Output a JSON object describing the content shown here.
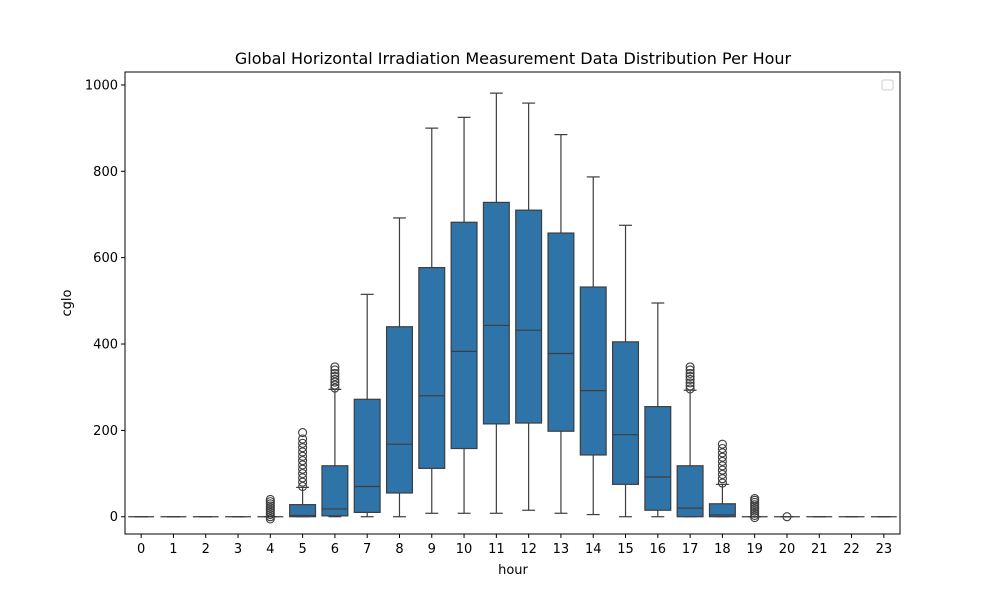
{
  "chart_data": {
    "type": "box",
    "title": "Global Horizontal Irradiation Measurement Data Distribution Per Hour",
    "xlabel": "hour",
    "ylabel": "cglo",
    "ylim": [
      -40,
      1030
    ],
    "yticks": [
      0,
      200,
      400,
      600,
      800,
      1000
    ],
    "grid": false,
    "legend": "top-right (empty)",
    "box_color": "#2f74a8",
    "line_color": "#3d3d3d",
    "categories": [
      "0",
      "1",
      "2",
      "3",
      "4",
      "5",
      "6",
      "7",
      "8",
      "9",
      "10",
      "11",
      "12",
      "13",
      "14",
      "15",
      "16",
      "17",
      "18",
      "19",
      "20",
      "21",
      "22",
      "23"
    ],
    "boxes": [
      {
        "hour": "0",
        "whislo": 0,
        "q1": 0,
        "med": 0,
        "q3": 0,
        "whishi": 0,
        "fliers": []
      },
      {
        "hour": "1",
        "whislo": 0,
        "q1": 0,
        "med": 0,
        "q3": 0,
        "whishi": 0,
        "fliers": []
      },
      {
        "hour": "2",
        "whislo": 0,
        "q1": 0,
        "med": 0,
        "q3": 0,
        "whishi": 0,
        "fliers": []
      },
      {
        "hour": "3",
        "whislo": 0,
        "q1": 0,
        "med": 0,
        "q3": 0,
        "whishi": 0,
        "fliers": []
      },
      {
        "hour": "4",
        "whislo": 0,
        "q1": 0,
        "med": 0,
        "q3": 0,
        "whishi": 0,
        "fliers": [
          -5,
          0,
          5,
          10,
          15,
          20,
          25,
          30,
          35,
          40
        ]
      },
      {
        "hour": "5",
        "whislo": 0,
        "q1": 0,
        "med": 3,
        "q3": 28,
        "whishi": 68,
        "fliers": [
          70,
          80,
          90,
          100,
          110,
          120,
          130,
          140,
          150,
          160,
          170,
          180,
          195
        ]
      },
      {
        "hour": "6",
        "whislo": 0,
        "q1": 2,
        "med": 18,
        "q3": 118,
        "whishi": 295,
        "fliers": [
          298,
          305,
          312,
          318,
          325,
          332,
          340,
          347
        ]
      },
      {
        "hour": "7",
        "whislo": 0,
        "q1": 10,
        "med": 70,
        "q3": 272,
        "whishi": 515,
        "fliers": []
      },
      {
        "hour": "8",
        "whislo": 0,
        "q1": 55,
        "med": 168,
        "q3": 440,
        "whishi": 692,
        "fliers": []
      },
      {
        "hour": "9",
        "whislo": 8,
        "q1": 112,
        "med": 280,
        "q3": 577,
        "whishi": 900,
        "fliers": []
      },
      {
        "hour": "10",
        "whislo": 8,
        "q1": 158,
        "med": 383,
        "q3": 682,
        "whishi": 925,
        "fliers": []
      },
      {
        "hour": "11",
        "whislo": 8,
        "q1": 215,
        "med": 443,
        "q3": 728,
        "whishi": 981,
        "fliers": []
      },
      {
        "hour": "12",
        "whislo": 15,
        "q1": 217,
        "med": 432,
        "q3": 710,
        "whishi": 958,
        "fliers": []
      },
      {
        "hour": "13",
        "whislo": 8,
        "q1": 198,
        "med": 378,
        "q3": 657,
        "whishi": 885,
        "fliers": []
      },
      {
        "hour": "14",
        "whislo": 5,
        "q1": 143,
        "med": 292,
        "q3": 532,
        "whishi": 787,
        "fliers": []
      },
      {
        "hour": "15",
        "whislo": 0,
        "q1": 75,
        "med": 190,
        "q3": 405,
        "whishi": 675,
        "fliers": []
      },
      {
        "hour": "16",
        "whislo": 0,
        "q1": 15,
        "med": 92,
        "q3": 255,
        "whishi": 495,
        "fliers": []
      },
      {
        "hour": "17",
        "whislo": 0,
        "q1": 0,
        "med": 20,
        "q3": 118,
        "whishi": 293,
        "fliers": [
          296,
          303,
          310,
          318,
          325,
          332,
          340,
          347
        ]
      },
      {
        "hour": "18",
        "whislo": 0,
        "q1": 0,
        "med": 4,
        "q3": 30,
        "whishi": 75,
        "fliers": [
          78,
          88,
          98,
          108,
          118,
          128,
          138,
          148,
          158,
          168
        ]
      },
      {
        "hour": "19",
        "whislo": 0,
        "q1": 0,
        "med": 0,
        "q3": 0,
        "whishi": 0,
        "fliers": [
          -2,
          3,
          8,
          13,
          18,
          23,
          28,
          33,
          38,
          42
        ]
      },
      {
        "hour": "20",
        "whislo": 0,
        "q1": 0,
        "med": 0,
        "q3": 0,
        "whishi": 0,
        "fliers": [
          0
        ]
      },
      {
        "hour": "21",
        "whislo": 0,
        "q1": 0,
        "med": 0,
        "q3": 0,
        "whishi": 0,
        "fliers": []
      },
      {
        "hour": "22",
        "whislo": 0,
        "q1": 0,
        "med": 0,
        "q3": 0,
        "whishi": 0,
        "fliers": []
      },
      {
        "hour": "23",
        "whislo": 0,
        "q1": 0,
        "med": 0,
        "q3": 0,
        "whishi": 0,
        "fliers": []
      }
    ]
  }
}
